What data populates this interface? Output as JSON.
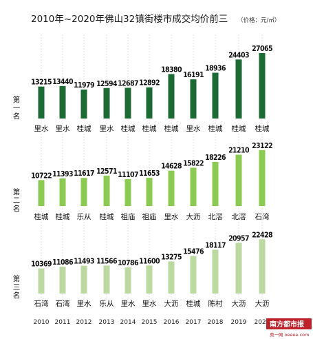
{
  "title": "2010年~2020年佛山32镇街楼市成交均价前三",
  "unit": "（价格：元/㎡）",
  "watermark": {
    "brand": "南方都市报",
    "site": "奥一网 oeeee.com"
  },
  "colors": {
    "first": "#1d6b34",
    "second": "#8ccb52",
    "third": "#bcd9a2"
  },
  "chart_data": {
    "type": "bar",
    "title": "2010年~2020年佛山32镇街楼市成交均价前三",
    "unit": "价格：元/㎡",
    "categories": [
      "2010",
      "2011",
      "2012",
      "2013",
      "2014",
      "2015",
      "2016",
      "2017",
      "2018",
      "2019",
      "2020"
    ],
    "ylim": [
      0,
      28000
    ],
    "series": [
      {
        "name": "第一名",
        "values": [
          13215,
          13440,
          11979,
          12594,
          12687,
          12892,
          18380,
          16191,
          18936,
          24403,
          27065
        ],
        "towns": [
          "里水",
          "里水",
          "桂城",
          "里水",
          "桂城",
          "桂城",
          "桂城",
          "里水",
          "桂城",
          "桂城",
          "桂城"
        ]
      },
      {
        "name": "第二名",
        "values": [
          10722,
          11393,
          11617,
          12571,
          11107,
          11653,
          14628,
          15822,
          18226,
          21210,
          23122
        ],
        "towns": [
          "桂城",
          "桂城",
          "乐从",
          "桂城",
          "祖庙",
          "祖庙",
          "里水",
          "大沥",
          "北滘",
          "北滘",
          "石湾"
        ]
      },
      {
        "name": "第三名",
        "values": [
          10369,
          11086,
          11493,
          11566,
          10786,
          11600,
          13275,
          15476,
          18117,
          20957,
          22428
        ],
        "towns": [
          "石湾",
          "石湾",
          "里水",
          "乐从",
          "里水",
          "里水",
          "大沥",
          "桂城",
          "陈村",
          "大沥",
          "大沥"
        ]
      }
    ]
  }
}
